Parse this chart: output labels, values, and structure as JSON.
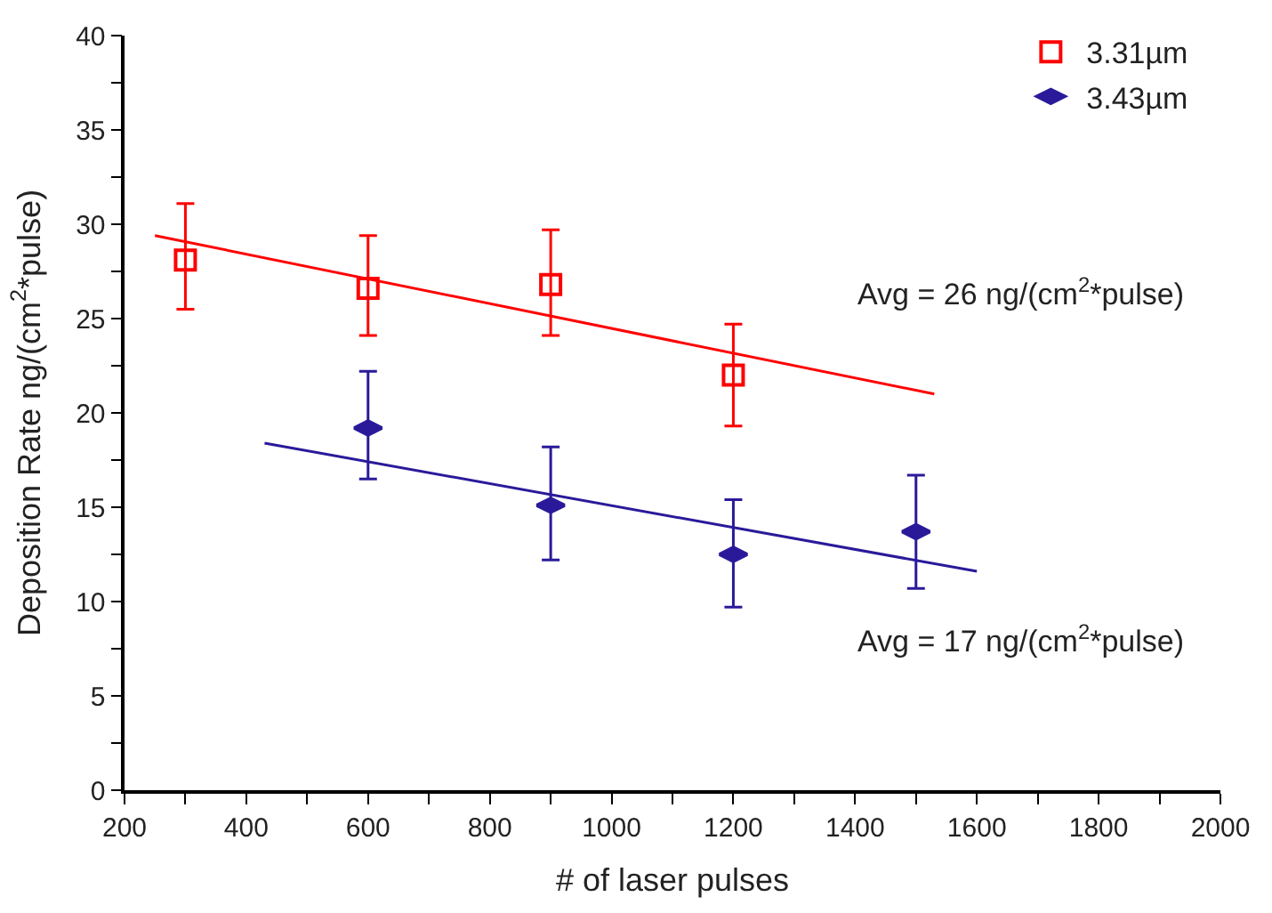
{
  "chart_data": {
    "type": "scatter",
    "xlabel": "# of laser pulses",
    "ylabel": "Deposition Rate ng/(cm$^{2}$*pulse)",
    "xlim": [
      200,
      2000
    ],
    "xticks": [
      200,
      {
        "value": 300,
        "label": null
      },
      400,
      {
        "value": 500,
        "label": null
      },
      600,
      {
        "value": 700,
        "label": null
      },
      800,
      {
        "value": 900,
        "label": null
      },
      1000,
      {
        "value": 1100,
        "label": null
      },
      1200,
      {
        "value": 1300,
        "label": null
      },
      1400,
      {
        "value": 1500,
        "label": null
      },
      1600,
      {
        "value": 1700,
        "label": null
      },
      1800,
      {
        "value": 1900,
        "label": null
      },
      2000
    ],
    "ylim": [
      0,
      40
    ],
    "yticks": [
      0,
      {
        "value": 2.5,
        "label": null
      },
      5,
      {
        "value": 7.5,
        "label": null
      },
      10,
      {
        "value": 12.5,
        "label": null
      },
      15,
      {
        "value": 17.5,
        "label": null
      },
      20,
      {
        "value": 22.5,
        "label": null
      },
      25,
      {
        "value": 27.5,
        "label": null
      },
      30,
      {
        "value": 32.5,
        "label": null
      },
      35,
      {
        "value": 37.5,
        "label": null
      },
      40
    ],
    "legend": "top right",
    "series": [
      {
        "name": "3.31µm",
        "marker": "square",
        "color": "#ff0000",
        "x": [
          300,
          600,
          900,
          1200
        ],
        "values": [
          28.1,
          26.6,
          26.8,
          22.0
        ],
        "errors": [
          [
            25.5,
            31.1
          ],
          [
            24.1,
            29.4
          ],
          [
            24.1,
            29.7
          ],
          [
            19.3,
            24.7
          ]
        ]
      },
      {
        "name": "3.43µm",
        "marker": "diamond",
        "color": "#2a1a9a",
        "x": [
          600,
          900,
          1200,
          1500
        ],
        "values": [
          19.2,
          15.1,
          12.5,
          13.7
        ],
        "errors": [
          [
            16.5,
            22.2
          ],
          [
            12.2,
            18.2
          ],
          [
            9.7,
            15.4
          ],
          [
            10.7,
            16.7
          ]
        ]
      },
      {
        "type": "line",
        "color": "#ff0000",
        "x": [
          250,
          1530
        ],
        "values": [
          29.4,
          21.0
        ]
      },
      {
        "type": "line",
        "color": "#2a1a9a",
        "x": [
          430,
          1600
        ],
        "values": [
          18.4,
          11.6
        ]
      }
    ],
    "annotations": [
      "Avg = 26 ng/(cm$^{2}$*pulse)",
      "Avg = 17 ng/(cm$^{2}$*pulse)"
    ]
  }
}
